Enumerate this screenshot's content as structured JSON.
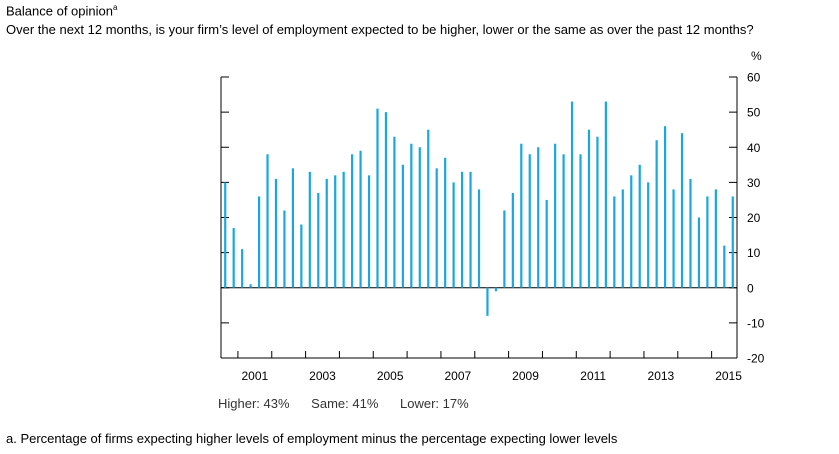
{
  "title": "Balance of opinion",
  "title_note": "a",
  "question": "Over the next 12 months, is your firm’s level of employment expected to be higher, lower or the same as over the past 12 months?",
  "summary": {
    "higher": "Higher: 43%",
    "same": "Same: 41%",
    "lower": "Lower: 17%"
  },
  "footnote": "a. Percentage of firms expecting higher levels of employment minus the percentage expecting lower levels",
  "colors": {
    "bar": "#1aa7e0",
    "axis": "#000000"
  },
  "chart_data": {
    "type": "bar",
    "unit": "%",
    "ylim": [
      -20,
      60
    ],
    "yticks": [
      60,
      50,
      40,
      30,
      20,
      10,
      0,
      -10,
      -20
    ],
    "xlim": [
      2000.5,
      2015.75
    ],
    "xticks": [
      "2001",
      "2003",
      "2005",
      "2007",
      "2009",
      "2011",
      "2013",
      "2015"
    ],
    "grid": false,
    "frequency": "quarterly",
    "start": "2000 Q3",
    "values": [
      30,
      17,
      11,
      1,
      26,
      38,
      31,
      22,
      34,
      18,
      33,
      27,
      31,
      32,
      33,
      38,
      39,
      32,
      51,
      50,
      43,
      35,
      41,
      40,
      45,
      34,
      37,
      30,
      33,
      33,
      28,
      -8,
      -1,
      22,
      27,
      41,
      38,
      40,
      25,
      41,
      38,
      53,
      38,
      45,
      43,
      53,
      26,
      28,
      32,
      35,
      30,
      42,
      46,
      28,
      44,
      31,
      20,
      26,
      28,
      12,
      26
    ]
  }
}
